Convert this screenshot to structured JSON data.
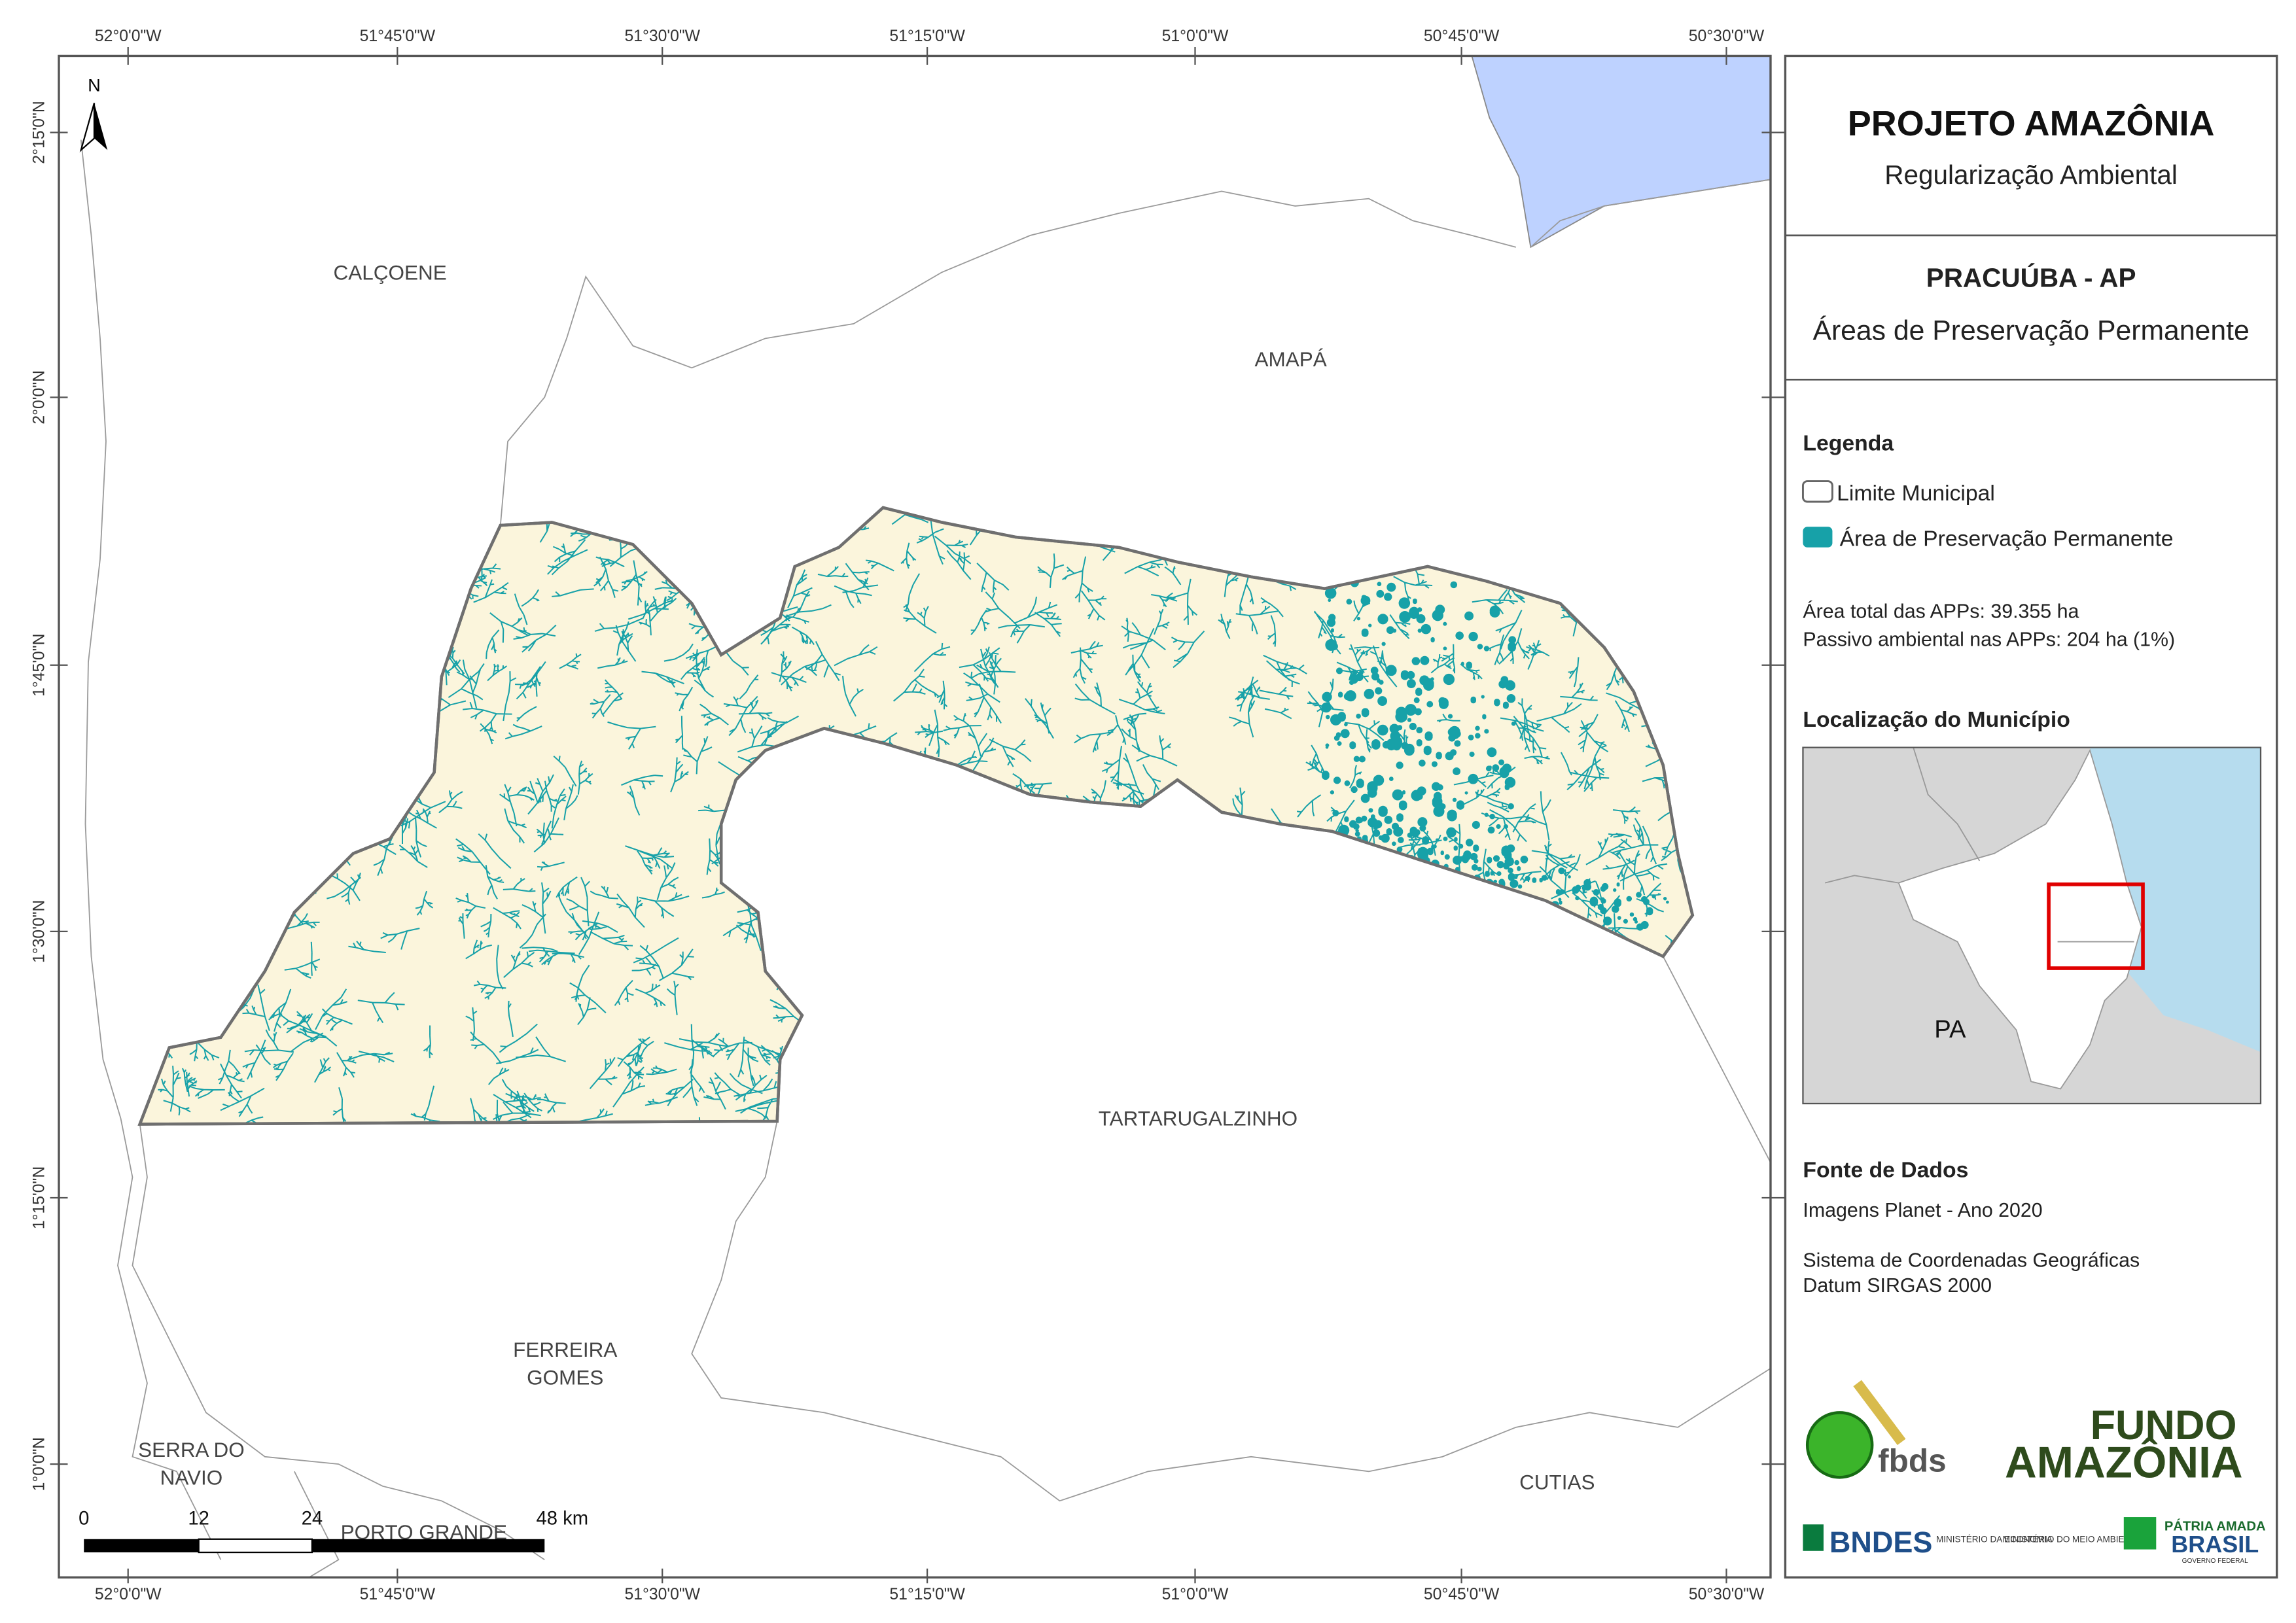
{
  "map": {
    "top_labels": [
      "52°0'0\"W",
      "51°45'0\"W",
      "51°30'0\"W",
      "51°15'0\"W",
      "51°0'0\"W",
      "50°45'0\"W",
      "50°30'0\"W"
    ],
    "left_labels": [
      "2°15'0\"N",
      "2°0'0\"N",
      "1°45'0\"N",
      "1°30'0\"N",
      "1°15'0\"N",
      "1°0'0\"N"
    ],
    "north": "N",
    "places": [
      [
        "CALÇOENE"
      ],
      [
        "AMAPÁ"
      ],
      [
        "TARTARUGALZINHO"
      ],
      [
        "FERREIRA",
        "GOMES"
      ],
      [
        "SERRA DO",
        "NAVIO"
      ],
      [
        "PORTO GRANDE"
      ],
      [
        "CUTIAS"
      ]
    ],
    "scale_labels": [
      "0",
      "12",
      "24",
      "48 km"
    ]
  },
  "panel": {
    "title": "PROJETO AMAZÔNIA",
    "subtitle": "Regularização Ambiental",
    "municipality": "PRACUÚBA - AP",
    "theme": "Áreas de Preservação Permanente",
    "legend_title": "Legenda",
    "legend_items": [
      "Limite Municipal",
      "Área de Preservação Permanente"
    ],
    "stats": [
      "Área total das APPs: 39.355 ha",
      "Passivo ambiental nas APPs: 204 ha (1%)"
    ],
    "location_title": "Localização do Município",
    "inset_label": "PA",
    "sources_title": "Fonte de Dados",
    "sources": [
      "Imagens Planet - Ano 2020",
      "Sistema de Coordenadas Geográficas",
      "Datum SIRGAS 2000"
    ],
    "logos": [
      "fbds",
      "FUNDO",
      "AMAZÔNIA",
      "BNDES",
      "MINISTÉRIO DA ECONOMIA",
      "MINISTÉRIO DO MEIO AMBIENTE",
      "PÁTRIA AMADA",
      "BRASIL",
      "GOVERNO FEDERAL"
    ]
  }
}
